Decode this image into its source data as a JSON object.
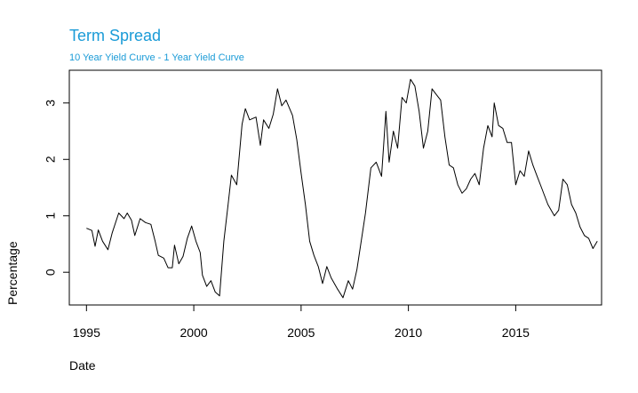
{
  "chart_data": {
    "type": "line",
    "title": "Term Spread",
    "subtitle": "10 Year Yield Curve - 1 Year Yield Curve",
    "xlabel": "Date",
    "ylabel": "Percentage",
    "xlim": [
      1994.2,
      2019.0
    ],
    "ylim": [
      -0.58,
      3.58
    ],
    "x_ticks": [
      1995,
      2000,
      2005,
      2010,
      2015
    ],
    "y_ticks": [
      0,
      1,
      2,
      3
    ],
    "grid": false,
    "series": [
      {
        "color": "#000000",
        "points": [
          [
            1995.0,
            0.78
          ],
          [
            1995.25,
            0.74
          ],
          [
            1995.4,
            0.46
          ],
          [
            1995.55,
            0.75
          ],
          [
            1995.75,
            0.55
          ],
          [
            1996.0,
            0.4
          ],
          [
            1996.2,
            0.7
          ],
          [
            1996.5,
            1.05
          ],
          [
            1996.75,
            0.95
          ],
          [
            1996.9,
            1.05
          ],
          [
            1997.1,
            0.92
          ],
          [
            1997.25,
            0.65
          ],
          [
            1997.5,
            0.95
          ],
          [
            1997.75,
            0.88
          ],
          [
            1998.0,
            0.85
          ],
          [
            1998.2,
            0.55
          ],
          [
            1998.35,
            0.3
          ],
          [
            1998.6,
            0.25
          ],
          [
            1998.8,
            0.08
          ],
          [
            1999.0,
            0.08
          ],
          [
            1999.1,
            0.48
          ],
          [
            1999.3,
            0.15
          ],
          [
            1999.5,
            0.28
          ],
          [
            1999.7,
            0.6
          ],
          [
            1999.9,
            0.82
          ],
          [
            2000.1,
            0.55
          ],
          [
            2000.3,
            0.35
          ],
          [
            2000.4,
            -0.05
          ],
          [
            2000.6,
            -0.25
          ],
          [
            2000.8,
            -0.15
          ],
          [
            2001.0,
            -0.35
          ],
          [
            2001.2,
            -0.42
          ],
          [
            2001.4,
            0.55
          ],
          [
            2001.6,
            1.2
          ],
          [
            2001.75,
            1.72
          ],
          [
            2002.0,
            1.55
          ],
          [
            2002.25,
            2.62
          ],
          [
            2002.4,
            2.9
          ],
          [
            2002.6,
            2.7
          ],
          [
            2002.9,
            2.75
          ],
          [
            2003.1,
            2.25
          ],
          [
            2003.25,
            2.7
          ],
          [
            2003.5,
            2.55
          ],
          [
            2003.7,
            2.8
          ],
          [
            2003.9,
            3.25
          ],
          [
            2004.1,
            2.95
          ],
          [
            2004.3,
            3.05
          ],
          [
            2004.6,
            2.78
          ],
          [
            2004.8,
            2.35
          ],
          [
            2005.0,
            1.75
          ],
          [
            2005.2,
            1.2
          ],
          [
            2005.4,
            0.55
          ],
          [
            2005.6,
            0.3
          ],
          [
            2005.8,
            0.1
          ],
          [
            2006.0,
            -0.2
          ],
          [
            2006.2,
            0.1
          ],
          [
            2006.4,
            -0.1
          ],
          [
            2006.7,
            -0.3
          ],
          [
            2006.95,
            -0.45
          ],
          [
            2007.2,
            -0.15
          ],
          [
            2007.4,
            -0.3
          ],
          [
            2007.6,
            0.05
          ],
          [
            2007.8,
            0.55
          ],
          [
            2008.0,
            1.05
          ],
          [
            2008.25,
            1.85
          ],
          [
            2008.5,
            1.95
          ],
          [
            2008.75,
            1.7
          ],
          [
            2008.95,
            2.85
          ],
          [
            2009.1,
            1.95
          ],
          [
            2009.3,
            2.5
          ],
          [
            2009.5,
            2.2
          ],
          [
            2009.7,
            3.1
          ],
          [
            2009.9,
            3.0
          ],
          [
            2010.1,
            3.42
          ],
          [
            2010.3,
            3.3
          ],
          [
            2010.5,
            2.85
          ],
          [
            2010.7,
            2.2
          ],
          [
            2010.9,
            2.5
          ],
          [
            2011.1,
            3.25
          ],
          [
            2011.3,
            3.15
          ],
          [
            2011.5,
            3.05
          ],
          [
            2011.7,
            2.4
          ],
          [
            2011.9,
            1.9
          ],
          [
            2012.1,
            1.85
          ],
          [
            2012.3,
            1.55
          ],
          [
            2012.5,
            1.4
          ],
          [
            2012.7,
            1.48
          ],
          [
            2012.9,
            1.65
          ],
          [
            2013.1,
            1.75
          ],
          [
            2013.3,
            1.55
          ],
          [
            2013.5,
            2.2
          ],
          [
            2013.7,
            2.6
          ],
          [
            2013.9,
            2.4
          ],
          [
            2014.0,
            3.0
          ],
          [
            2014.2,
            2.6
          ],
          [
            2014.4,
            2.55
          ],
          [
            2014.6,
            2.3
          ],
          [
            2014.8,
            2.3
          ],
          [
            2015.0,
            1.55
          ],
          [
            2015.2,
            1.8
          ],
          [
            2015.4,
            1.7
          ],
          [
            2015.6,
            2.15
          ],
          [
            2015.8,
            1.9
          ],
          [
            2016.0,
            1.7
          ],
          [
            2016.2,
            1.5
          ],
          [
            2016.5,
            1.2
          ],
          [
            2016.8,
            1.0
          ],
          [
            2017.0,
            1.1
          ],
          [
            2017.2,
            1.65
          ],
          [
            2017.4,
            1.55
          ],
          [
            2017.6,
            1.2
          ],
          [
            2017.8,
            1.05
          ],
          [
            2018.0,
            0.8
          ],
          [
            2018.2,
            0.65
          ],
          [
            2018.4,
            0.6
          ],
          [
            2018.6,
            0.42
          ],
          [
            2018.8,
            0.55
          ]
        ]
      }
    ]
  }
}
